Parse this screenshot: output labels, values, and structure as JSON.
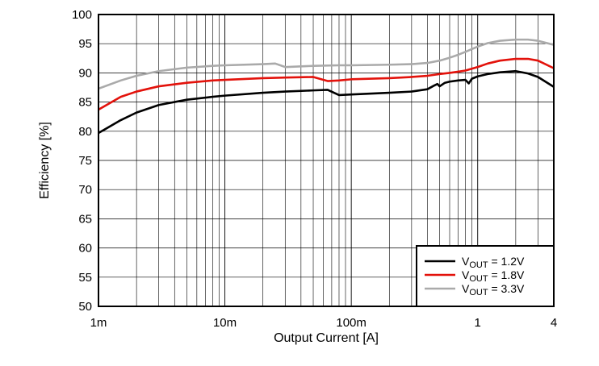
{
  "chart_data": {
    "type": "line",
    "title": "",
    "xlabel": "Output Current [A]",
    "ylabel": "Efficiency [%]",
    "x_scale": "log",
    "xlim": [
      0.001,
      4
    ],
    "ylim": [
      50,
      100
    ],
    "x_ticks": [
      {
        "value": 0.001,
        "label": "1m"
      },
      {
        "value": 0.01,
        "label": "10m"
      },
      {
        "value": 0.1,
        "label": "100m"
      },
      {
        "value": 1,
        "label": "1"
      },
      {
        "value": 4,
        "label": "4"
      }
    ],
    "y_ticks": [
      50,
      55,
      60,
      65,
      70,
      75,
      80,
      85,
      90,
      95,
      100
    ],
    "grid": true,
    "legend_position": "bottom-right",
    "series": [
      {
        "name_prefix": "V",
        "name_sub": "OUT",
        "name_suffix": " = 1.2V",
        "color": "#000000",
        "x": [
          0.001,
          0.0015,
          0.002,
          0.003,
          0.005,
          0.008,
          0.01,
          0.02,
          0.03,
          0.05,
          0.065,
          0.08,
          0.1,
          0.2,
          0.3,
          0.4,
          0.45,
          0.48,
          0.5,
          0.55,
          0.6,
          0.7,
          0.8,
          0.85,
          0.9,
          1.0,
          1.2,
          1.5,
          2.0,
          2.5,
          3.0,
          4.0
        ],
        "y": [
          79.7,
          81.9,
          83.2,
          84.5,
          85.4,
          85.9,
          86.1,
          86.6,
          86.8,
          87.0,
          87.1,
          86.2,
          86.3,
          86.6,
          86.8,
          87.2,
          87.8,
          88.1,
          87.7,
          88.3,
          88.5,
          88.7,
          88.8,
          88.2,
          89.0,
          89.4,
          89.8,
          90.1,
          90.3,
          89.9,
          89.3,
          87.6
        ]
      },
      {
        "name_prefix": "V",
        "name_sub": "OUT",
        "name_suffix": " = 1.8V",
        "color": "#e3120b",
        "x": [
          0.001,
          0.0015,
          0.002,
          0.003,
          0.005,
          0.008,
          0.01,
          0.02,
          0.03,
          0.05,
          0.065,
          0.08,
          0.1,
          0.2,
          0.3,
          0.4,
          0.5,
          0.6,
          0.7,
          0.8,
          1.0,
          1.2,
          1.5,
          2.0,
          2.5,
          3.0,
          4.0
        ],
        "y": [
          83.7,
          85.9,
          86.8,
          87.7,
          88.3,
          88.7,
          88.8,
          89.1,
          89.2,
          89.3,
          88.6,
          88.7,
          88.9,
          89.1,
          89.3,
          89.5,
          89.8,
          90.0,
          90.2,
          90.4,
          91.0,
          91.6,
          92.1,
          92.4,
          92.4,
          92.1,
          90.8
        ]
      },
      {
        "name_prefix": "V",
        "name_sub": "OUT",
        "name_suffix": " = 3.3V",
        "color": "#aaaaaa",
        "x": [
          0.001,
          0.0015,
          0.002,
          0.003,
          0.005,
          0.008,
          0.01,
          0.02,
          0.025,
          0.03,
          0.05,
          0.08,
          0.1,
          0.2,
          0.3,
          0.4,
          0.5,
          0.6,
          0.7,
          0.8,
          1.0,
          1.2,
          1.5,
          2.0,
          2.5,
          3.0,
          4.0
        ],
        "y": [
          87.3,
          88.7,
          89.5,
          90.3,
          90.9,
          91.2,
          91.3,
          91.5,
          91.6,
          91.0,
          91.2,
          91.3,
          91.3,
          91.4,
          91.5,
          91.7,
          92.1,
          92.6,
          93.1,
          93.6,
          94.5,
          95.1,
          95.5,
          95.7,
          95.7,
          95.5,
          94.8
        ]
      }
    ]
  }
}
